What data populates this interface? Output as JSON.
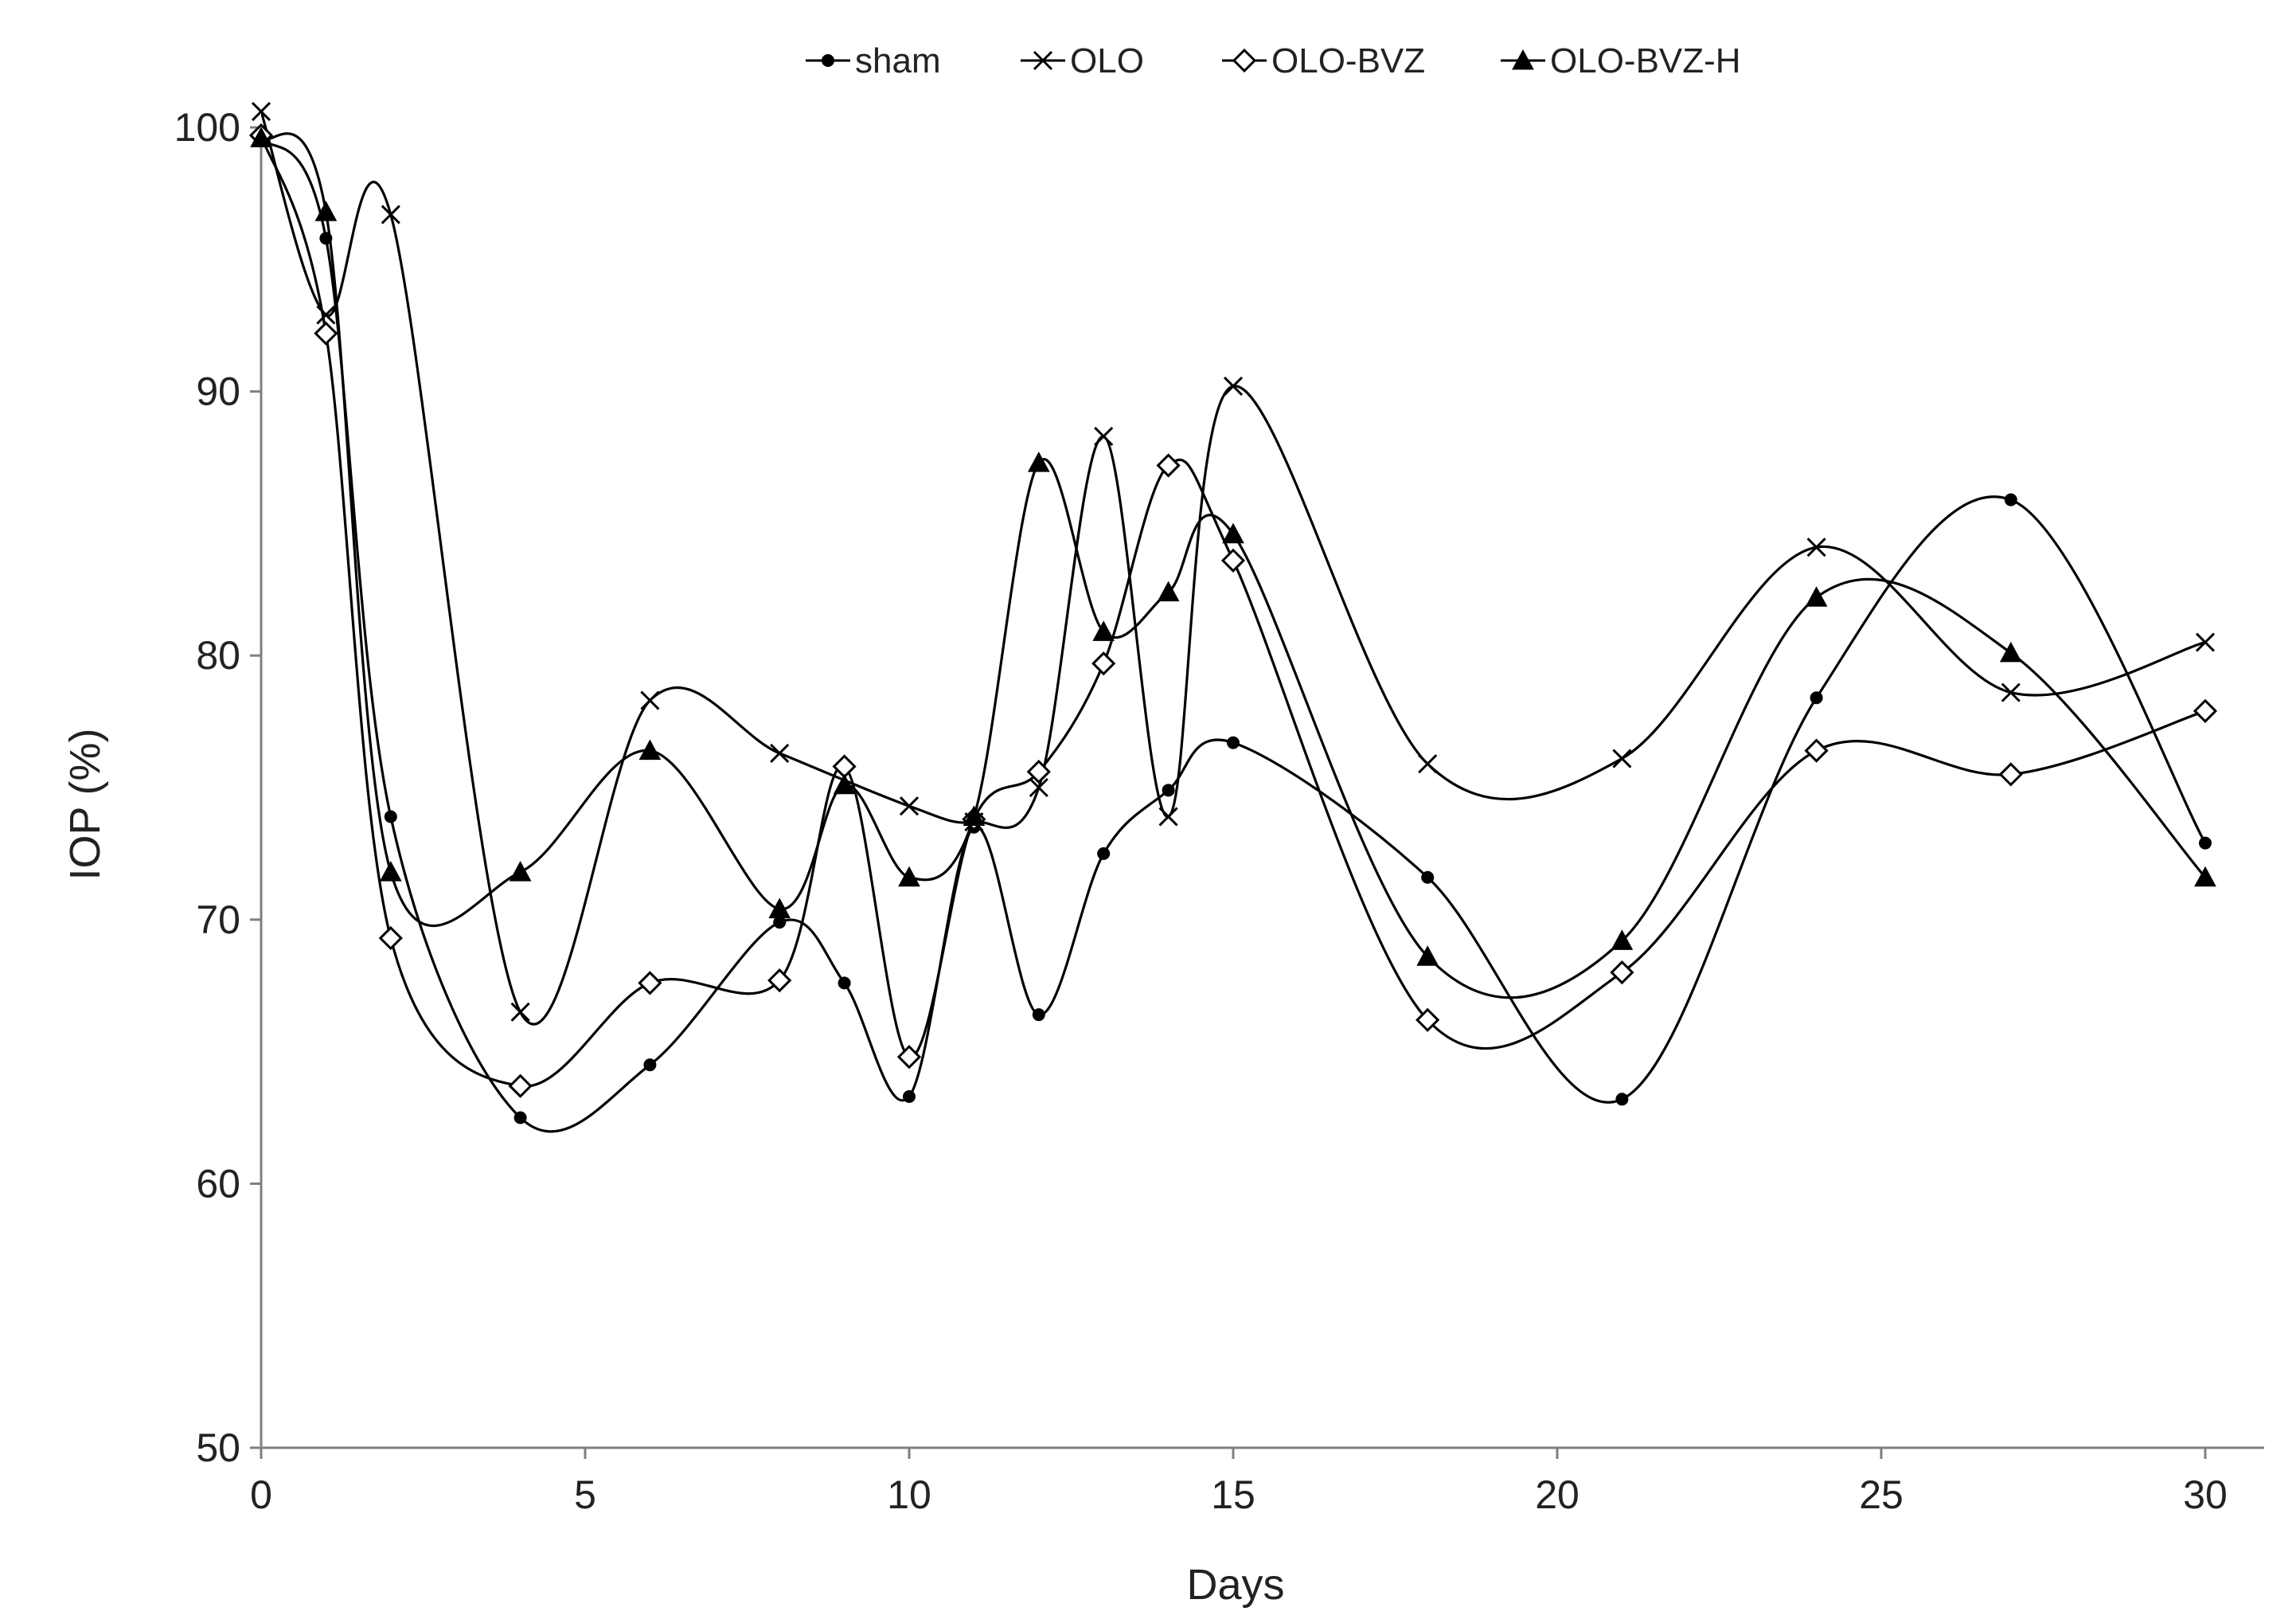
{
  "chart_data": {
    "type": "line",
    "title": "",
    "xlabel": "Days",
    "ylabel": "IOP (%)",
    "xlim": [
      0,
      30
    ],
    "ylim": [
      50,
      100
    ],
    "xticks": [
      0,
      5,
      10,
      15,
      20,
      25,
      30
    ],
    "yticks": [
      50,
      60,
      70,
      80,
      90,
      100
    ],
    "smooth": true,
    "grid": false,
    "legend_position": "top",
    "series": [
      {
        "name": "sham",
        "marker": "dot",
        "points": [
          [
            0,
            99.6
          ],
          [
            1,
            95.8
          ],
          [
            2,
            73.9
          ],
          [
            4,
            62.5
          ],
          [
            6,
            64.5
          ],
          [
            8,
            69.9
          ],
          [
            9,
            67.6
          ],
          [
            10,
            63.3
          ],
          [
            11,
            73.5
          ],
          [
            12,
            66.4
          ],
          [
            13,
            72.5
          ],
          [
            14,
            74.9
          ],
          [
            15,
            76.7
          ],
          [
            18,
            71.6
          ],
          [
            21,
            63.2
          ],
          [
            24,
            78.4
          ],
          [
            27,
            85.9
          ],
          [
            30,
            72.9
          ]
        ]
      },
      {
        "name": "OLO",
        "marker": "x",
        "points": [
          [
            0,
            100.6
          ],
          [
            1,
            92.9
          ],
          [
            2,
            96.7
          ],
          [
            4,
            66.5
          ],
          [
            6,
            78.3
          ],
          [
            8,
            76.3
          ],
          [
            10,
            74.3
          ],
          [
            11,
            73.7
          ],
          [
            12,
            75.0
          ],
          [
            13,
            88.3
          ],
          [
            14,
            73.9
          ],
          [
            15,
            90.2
          ],
          [
            18,
            75.9
          ],
          [
            21,
            76.1
          ],
          [
            24,
            84.1
          ],
          [
            27,
            78.6
          ],
          [
            30,
            80.5
          ]
        ]
      },
      {
        "name": "OLO-BVZ",
        "marker": "diamond",
        "points": [
          [
            0,
            99.7
          ],
          [
            1,
            92.2
          ],
          [
            2,
            69.3
          ],
          [
            4,
            63.7
          ],
          [
            6,
            67.6
          ],
          [
            8,
            67.7
          ],
          [
            9,
            75.8
          ],
          [
            10,
            64.8
          ],
          [
            11,
            73.8
          ],
          [
            12,
            75.6
          ],
          [
            13,
            79.7
          ],
          [
            14,
            87.2
          ],
          [
            15,
            83.6
          ],
          [
            18,
            66.2
          ],
          [
            21,
            68.0
          ],
          [
            24,
            76.4
          ],
          [
            27,
            75.5
          ],
          [
            30,
            77.9
          ]
        ]
      },
      {
        "name": "OLO-BVZ-H",
        "marker": "triangle",
        "points": [
          [
            0,
            99.6
          ],
          [
            1,
            96.8
          ],
          [
            2,
            71.8
          ],
          [
            4,
            71.8
          ],
          [
            6,
            76.4
          ],
          [
            8,
            70.4
          ],
          [
            9,
            75.1
          ],
          [
            10,
            71.6
          ],
          [
            11,
            73.9
          ],
          [
            12,
            87.3
          ],
          [
            13,
            80.9
          ],
          [
            14,
            82.4
          ],
          [
            15,
            84.6
          ],
          [
            18,
            68.6
          ],
          [
            21,
            69.2
          ],
          [
            24,
            82.2
          ],
          [
            27,
            80.1
          ],
          [
            30,
            71.6
          ]
        ]
      }
    ]
  }
}
